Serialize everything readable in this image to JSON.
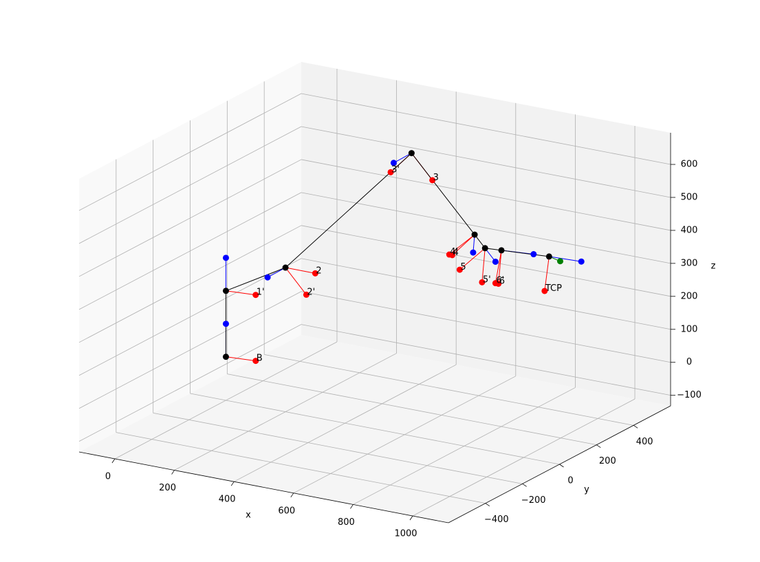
{
  "chart_data": {
    "type": "scatter3d",
    "xlabel": "x",
    "ylabel": "y",
    "zlabel": "z",
    "xlim": [
      -120,
      1120
    ],
    "ylim": [
      -600,
      600
    ],
    "zlim": [
      -132,
      696
    ],
    "xticks": [
      0,
      200,
      400,
      600,
      800,
      1000
    ],
    "yticks": [
      {
        "value": -400,
        "label": "−400"
      },
      {
        "value": -200,
        "label": "−200"
      },
      0,
      200,
      400
    ],
    "zticks": [
      {
        "value": -100,
        "label": "−100"
      },
      0,
      100,
      200,
      300,
      400,
      500,
      600
    ],
    "grid": true,
    "joint_color": "black",
    "joints": [
      {
        "x": 0,
        "y": 0,
        "z": 0,
        "frame": [
          {
            "color": "red",
            "label": "B",
            "x": 100,
            "y": 0,
            "z": 5
          },
          {
            "color": "blue",
            "x": 0,
            "y": 0,
            "z": 100
          }
        ]
      },
      {
        "x": 0,
        "y": 0,
        "z": 200,
        "frame": [
          {
            "color": "red",
            "label": "1'",
            "x": 100,
            "y": 0,
            "z": 205
          },
          {
            "color": "blue",
            "x": 0,
            "y": 0,
            "z": 300
          }
        ]
      },
      {
        "x": 200,
        "y": 0,
        "z": 305,
        "frame": [
          {
            "color": "red",
            "label": "2",
            "x": 300,
            "y": 0,
            "z": 305
          },
          {
            "color": "red",
            "label": "2'",
            "x": 270,
            "y": 0,
            "z": 235
          },
          {
            "color": "blue",
            "x": 140,
            "y": 0,
            "z": 265
          }
        ]
      },
      {
        "x": 530,
        "y": 150,
        "z": 665,
        "frame": [
          {
            "color": "red",
            "label": "3'",
            "x": 460,
            "y": 150,
            "z": 595
          },
          {
            "color": "red",
            "label": "3",
            "x": 600,
            "y": 150,
            "z": 595
          },
          {
            "color": "blue",
            "x": 470,
            "y": 150,
            "z": 625
          }
        ]
      },
      {
        "x": 835,
        "y": 0,
        "z": 515,
        "frame": [
          {
            "color": "red",
            "label": "4'",
            "x": 750,
            "y": 0,
            "z": 440
          },
          {
            "color": "red",
            "label": "4",
            "x": 760,
            "y": 0,
            "z": 440
          },
          {
            "color": "blue",
            "x": 830,
            "y": 0,
            "z": 460
          }
        ]
      },
      {
        "x": 870,
        "y": 0,
        "z": 480,
        "frame": [
          {
            "color": "red",
            "label": "5",
            "x": 785,
            "y": 0,
            "z": 400
          },
          {
            "color": "red",
            "label": "5'",
            "x": 860,
            "y": 0,
            "z": 375
          },
          {
            "color": "blue",
            "x": 905,
            "y": 0,
            "z": 445
          }
        ]
      },
      {
        "x": 925,
        "y": 0,
        "z": 483,
        "frame": [
          {
            "color": "red",
            "label": "6'",
            "x": 905,
            "y": 0,
            "z": 380
          },
          {
            "color": "red",
            "label": "6",
            "x": 915,
            "y": 0,
            "z": 380
          },
          {
            "color": "blue",
            "x": 1033,
            "y": 0,
            "z": 490
          }
        ]
      },
      {
        "x": 1085,
        "y": 0,
        "z": 492,
        "frame": [
          {
            "color": "red",
            "label": "TCP",
            "x": 1070,
            "y": 0,
            "z": 385
          },
          {
            "color": "blue",
            "x": 1100,
            "y": 150,
            "z": 435
          },
          {
            "color": "green",
            "x": 1085,
            "y": 60,
            "z": 460
          }
        ]
      }
    ]
  }
}
